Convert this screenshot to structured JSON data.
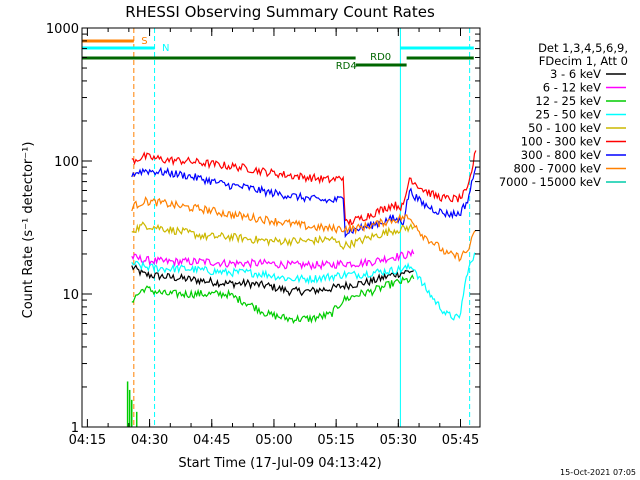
{
  "chart_data": {
    "type": "line",
    "title": "RHESSI Observing Summary Count Rates",
    "xlabel": "Start Time (17-Jul-09 04:13:42)",
    "ylabel": "Count Rate (s⁻¹ detector⁻¹)",
    "x_unit": "minutes since 04:13:42",
    "xlim": [
      0,
      96
    ],
    "yscale": "log",
    "ylim": [
      1,
      1000
    ],
    "x_ticks": [
      {
        "label": "04:15",
        "value": 1.3
      },
      {
        "label": "04:30",
        "value": 16.3
      },
      {
        "label": "04:45",
        "value": 31.3
      },
      {
        "label": "05:00",
        "value": 46.3
      },
      {
        "label": "05:15",
        "value": 61.3
      },
      {
        "label": "05:30",
        "value": 76.3
      },
      {
        "label": "05:45",
        "value": 91.3
      }
    ],
    "y_ticks": [
      {
        "label": "1",
        "value": 1
      },
      {
        "label": "10",
        "value": 10
      },
      {
        "label": "100",
        "value": 100
      },
      {
        "label": "1000",
        "value": 1000
      }
    ],
    "legend": {
      "placement": "right",
      "header": [
        "Det 1,3,4,5,6,9,",
        "FDecim 1, Att 0"
      ]
    },
    "series": [
      {
        "name": "3 - 6 keV",
        "color": "#000000",
        "points": [
          [
            12,
            16
          ],
          [
            15,
            14
          ],
          [
            20,
            13.5
          ],
          [
            25,
            13
          ],
          [
            30,
            12.5
          ],
          [
            35,
            12
          ],
          [
            40,
            12
          ],
          [
            45,
            11.5
          ],
          [
            50,
            10.5
          ],
          [
            55,
            10.5
          ],
          [
            60,
            11
          ],
          [
            63,
            11.5
          ],
          [
            67,
            12
          ],
          [
            70,
            12.5
          ],
          [
            75,
            14
          ],
          [
            80,
            15
          ]
        ]
      },
      {
        "name": "6 - 12 keV",
        "color": "#ff00ff",
        "points": [
          [
            12,
            19
          ],
          [
            15,
            18
          ],
          [
            20,
            17.5
          ],
          [
            25,
            17.5
          ],
          [
            30,
            17.5
          ],
          [
            35,
            17
          ],
          [
            40,
            17
          ],
          [
            45,
            17
          ],
          [
            50,
            16.5
          ],
          [
            55,
            16.5
          ],
          [
            60,
            16.5
          ],
          [
            63,
            17
          ],
          [
            67,
            17
          ],
          [
            70,
            17.5
          ],
          [
            75,
            19
          ],
          [
            80,
            20
          ]
        ]
      },
      {
        "name": "12 - 25 keV",
        "color": "#00cc00",
        "points": [
          [
            12,
            9
          ],
          [
            15,
            11
          ],
          [
            20,
            10
          ],
          [
            25,
            10
          ],
          [
            30,
            10
          ],
          [
            35,
            10
          ],
          [
            40,
            8.5
          ],
          [
            45,
            7
          ],
          [
            50,
            6.5
          ],
          [
            55,
            6.5
          ],
          [
            60,
            7
          ],
          [
            63,
            9
          ],
          [
            67,
            10
          ],
          [
            70,
            10.5
          ],
          [
            75,
            12
          ],
          [
            80,
            13
          ]
        ]
      },
      {
        "name": "25 - 50 keV",
        "color": "#00ffff",
        "points": [
          [
            12,
            17
          ],
          [
            15,
            16
          ],
          [
            20,
            15.5
          ],
          [
            25,
            15.5
          ],
          [
            30,
            15
          ],
          [
            35,
            14.5
          ],
          [
            40,
            14.5
          ],
          [
            45,
            14
          ],
          [
            50,
            13
          ],
          [
            55,
            13
          ],
          [
            60,
            13.5
          ],
          [
            63,
            14
          ],
          [
            67,
            14
          ],
          [
            70,
            14.5
          ],
          [
            75,
            15
          ],
          [
            80,
            16
          ],
          [
            82,
            12
          ],
          [
            85,
            9
          ],
          [
            88,
            7
          ],
          [
            91,
            6.5
          ],
          [
            93,
            15
          ],
          [
            95,
            20
          ]
        ]
      },
      {
        "name": "50 - 100 keV",
        "color": "#ccb800",
        "points": [
          [
            12,
            30
          ],
          [
            15,
            33
          ],
          [
            20,
            31
          ],
          [
            25,
            29
          ],
          [
            30,
            27
          ],
          [
            35,
            27
          ],
          [
            40,
            26
          ],
          [
            45,
            25
          ],
          [
            50,
            25
          ],
          [
            55,
            25
          ],
          [
            60,
            26
          ],
          [
            63,
            23
          ],
          [
            67,
            25
          ],
          [
            70,
            27
          ],
          [
            75,
            30
          ],
          [
            80,
            32
          ]
        ]
      },
      {
        "name": "100 - 300 keV",
        "color": "#ff0000",
        "points": [
          [
            12,
            100
          ],
          [
            15,
            108
          ],
          [
            20,
            102
          ],
          [
            25,
            100
          ],
          [
            30,
            96
          ],
          [
            35,
            92
          ],
          [
            40,
            88
          ],
          [
            45,
            82
          ],
          [
            50,
            78
          ],
          [
            55,
            75
          ],
          [
            60,
            72
          ],
          [
            63,
            75
          ],
          [
            63.5,
            34
          ],
          [
            65,
            35
          ],
          [
            70,
            40
          ],
          [
            75,
            47
          ],
          [
            77.5,
            45
          ],
          [
            79,
            75
          ],
          [
            82,
            62
          ],
          [
            85,
            55
          ],
          [
            88,
            52
          ],
          [
            91,
            52
          ],
          [
            93,
            60
          ],
          [
            95,
            120
          ]
        ]
      },
      {
        "name": "300 - 800 keV",
        "color": "#0000ff",
        "points": [
          [
            12,
            80
          ],
          [
            15,
            85
          ],
          [
            20,
            82
          ],
          [
            25,
            78
          ],
          [
            30,
            72
          ],
          [
            35,
            66
          ],
          [
            40,
            63
          ],
          [
            45,
            58
          ],
          [
            50,
            55
          ],
          [
            55,
            52
          ],
          [
            60,
            50
          ],
          [
            63,
            52
          ],
          [
            63.5,
            29
          ],
          [
            65,
            30
          ],
          [
            70,
            33
          ],
          [
            75,
            37
          ],
          [
            77.5,
            35
          ],
          [
            79,
            60
          ],
          [
            82,
            48
          ],
          [
            85,
            43
          ],
          [
            88,
            40
          ],
          [
            91,
            40
          ],
          [
            93,
            50
          ],
          [
            95,
            90
          ]
        ]
      },
      {
        "name": "800 - 7000 keV",
        "color": "#ff8000",
        "points": [
          [
            12,
            45
          ],
          [
            15,
            50
          ],
          [
            20,
            48
          ],
          [
            25,
            45
          ],
          [
            30,
            43
          ],
          [
            35,
            40
          ],
          [
            40,
            38
          ],
          [
            45,
            36
          ],
          [
            50,
            34
          ],
          [
            55,
            32
          ],
          [
            60,
            31
          ],
          [
            63,
            31
          ],
          [
            66,
            31
          ],
          [
            70,
            33
          ],
          [
            75,
            36
          ],
          [
            78,
            38
          ],
          [
            80,
            35
          ],
          [
            82,
            28
          ],
          [
            85,
            24
          ],
          [
            88,
            20
          ],
          [
            91,
            19
          ],
          [
            93,
            21
          ],
          [
            95,
            30
          ]
        ]
      },
      {
        "name": "7000 - 15000 keV",
        "color": "#00ccaa",
        "points": []
      }
    ],
    "annotations": [
      {
        "label": "S",
        "color": "#ff8000"
      },
      {
        "label": "N",
        "color": "#00ffff"
      },
      {
        "label": "RD0",
        "color": "#006600"
      },
      {
        "label": "RD4",
        "color": "#006600"
      }
    ],
    "timestamp": "15-Oct-2021 07:05"
  }
}
